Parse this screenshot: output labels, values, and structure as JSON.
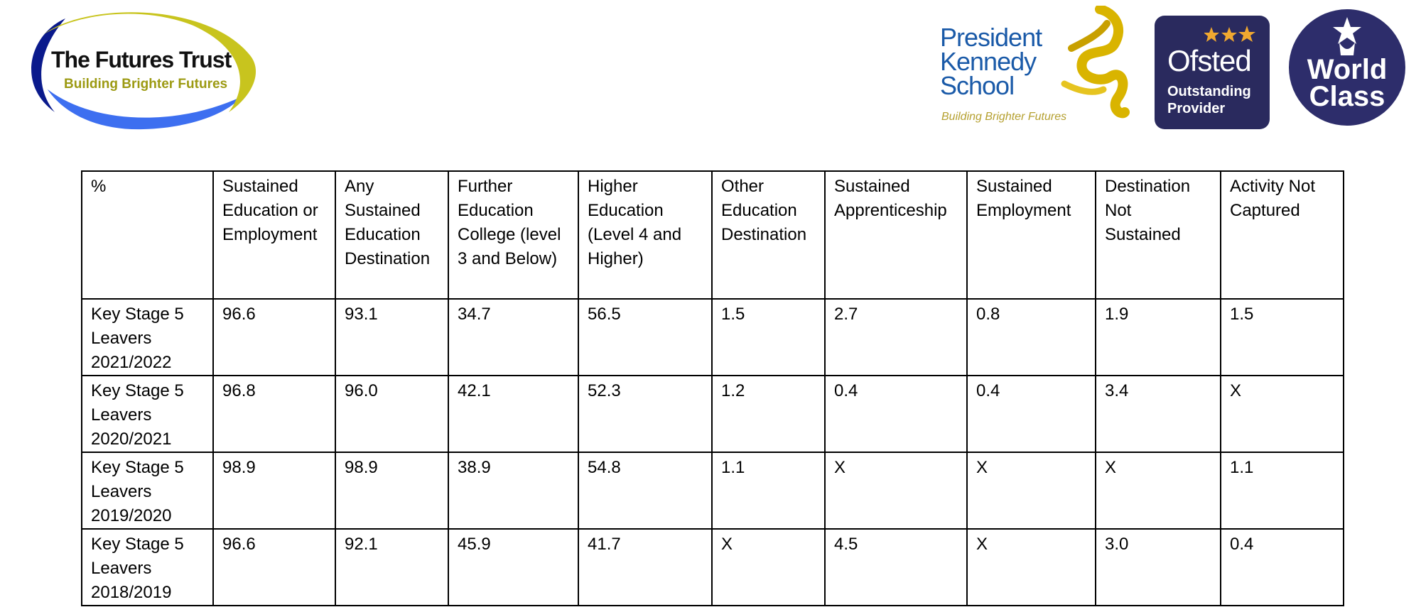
{
  "header": {
    "trust_logo": {
      "name": "The Futures Trust",
      "tagline": "Building Brighter Futures"
    },
    "school_logo": {
      "line1": "President",
      "line2": "Kennedy",
      "line3": "School",
      "tagline": "Building Brighter Futures"
    },
    "ofsted_logo": {
      "name": "Ofsted",
      "line1": "Outstanding",
      "line2": "Provider"
    },
    "world_class_logo": {
      "line1": "World",
      "line2": "Class"
    }
  },
  "table": {
    "columns": [
      "%",
      "Sustained Education or Employment",
      "Any Sustained Education Destination",
      "Further Education College (level 3 and Below)",
      "Higher Education (Level 4 and Higher)",
      "Other Education Destination",
      "Sustained Apprenticeship",
      "Sustained Employment",
      "Destination Not Sustained",
      "Activity Not Captured"
    ],
    "rows": [
      {
        "label": "Key Stage 5 Leavers 2021/2022",
        "values": [
          "96.6",
          "93.1",
          "34.7",
          "56.5",
          "1.5",
          "2.7",
          "0.8",
          "1.9",
          "1.5"
        ]
      },
      {
        "label": "Key Stage 5 Leavers 2020/2021",
        "values": [
          "96.8",
          "96.0",
          "42.1",
          "52.3",
          "1.2",
          "0.4",
          "0.4",
          "3.4",
          "X"
        ]
      },
      {
        "label": "Key Stage 5 Leavers 2019/2020",
        "values": [
          "98.9",
          "98.9",
          "38.9",
          "54.8",
          "1.1",
          "X",
          "X",
          "X",
          "1.1"
        ]
      },
      {
        "label": "Key Stage 5 Leavers 2018/2019",
        "values": [
          "96.6",
          "92.1",
          "45.9",
          "41.7",
          "X",
          "4.5",
          "X",
          "3.0",
          "0.4"
        ]
      }
    ]
  },
  "colors": {
    "trust_navy": "#0a1a8c",
    "trust_blue": "#3d6ff0",
    "trust_olive": "#b8b820",
    "pk_blue": "#1a5aa8",
    "pk_gold": "#d9b400",
    "ofsted_bg": "#2a2a5e",
    "ofsted_star": "#f0a830",
    "world_bg": "#2d2d6b"
  }
}
